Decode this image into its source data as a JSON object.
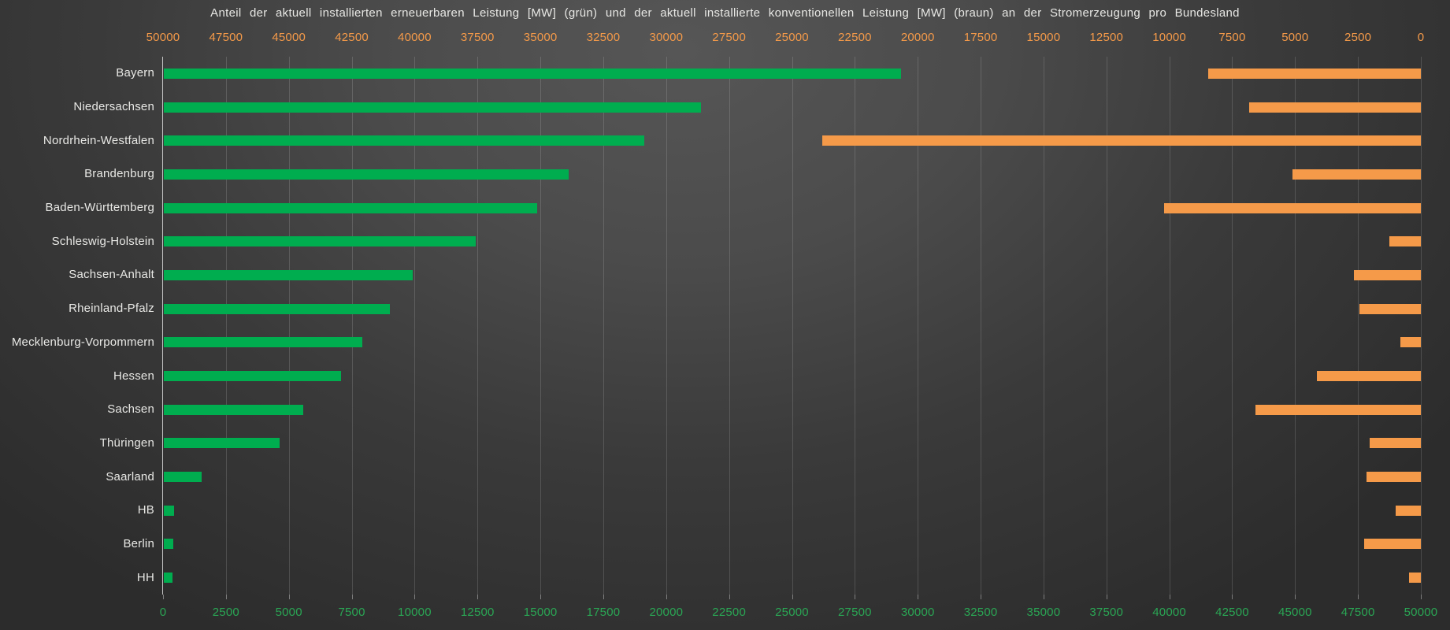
{
  "title": "Anteil der aktuell installierten erneuerbaren Leistung [MW] (grün) und der aktuell installierte konventionellen Leistung [MW] (braun) an der Stromerzeugung pro Bundesland",
  "colors": {
    "renewable_green": "#00ad4f",
    "conventional_orange": "#f59a49",
    "top_axis_tick_text": "#f59a49",
    "bottom_axis_tick_text": "#2aa654",
    "label_text": "#e8e8e5",
    "gridline": "rgba(255,255,255,0.15)",
    "axis_line": "#c4c4c4",
    "tick_mark": "rgba(255,255,255,0.38)"
  },
  "chart_data": {
    "type": "bar",
    "orientation": "horizontal",
    "title": "Anteil der aktuell installierten erneuerbaren Leistung [MW] (grün) und der aktuell installierte konventionellen Leistung [MW] (braun) an der Stromerzeugung pro Bundesland",
    "categories": [
      "Bayern",
      "Niedersachsen",
      "Nordrhein-Westfalen",
      "Brandenburg",
      "Baden-Württemberg",
      "Schleswig-Holstein",
      "Sachsen-Anhalt",
      "Rheinland-Pfalz",
      "Mecklenburg-Vorpommern",
      "Hessen",
      "Sachsen",
      "Thüringen",
      "Saarland",
      "HB",
      "Berlin",
      "HH"
    ],
    "series": [
      {
        "name": "Erneuerbare Leistung [MW] (grün)",
        "color": "#00ad4f",
        "anchor": "left",
        "axis": "bottom",
        "values": [
          29300,
          21350,
          19100,
          16100,
          14850,
          12400,
          9900,
          9000,
          7880,
          7050,
          5550,
          4590,
          1510,
          410,
          390,
          330
        ]
      },
      {
        "name": "Konventionelle Leistung [MW] (braun)",
        "color": "#f59a49",
        "anchor": "right",
        "axis": "top",
        "values": [
          8450,
          6830,
          23800,
          5100,
          10200,
          1250,
          2670,
          2430,
          815,
          4130,
          6560,
          2030,
          2170,
          1000,
          2250,
          470
        ]
      }
    ],
    "x_bottom_axis": {
      "min": 0,
      "max": 50000,
      "step": 2500,
      "direction": "0 at left, 50000 at right",
      "tick_color": "#2aa654",
      "ticks": [
        0,
        2500,
        5000,
        7500,
        10000,
        12500,
        15000,
        17500,
        20000,
        22500,
        25000,
        27500,
        30000,
        32500,
        35000,
        37500,
        40000,
        42500,
        45000,
        47500,
        50000
      ]
    },
    "x_top_axis": {
      "min": 0,
      "max": 50000,
      "step": 2500,
      "direction": "50000 at left, 0 at right",
      "tick_color": "#f59a49",
      "ticks": [
        50000,
        47500,
        45000,
        42500,
        40000,
        37500,
        35000,
        32500,
        30000,
        27500,
        25000,
        22500,
        20000,
        17500,
        15000,
        12500,
        10000,
        7500,
        5000,
        2500,
        0
      ]
    },
    "grid": true,
    "legend": "none (series identified by colors named in title)"
  }
}
